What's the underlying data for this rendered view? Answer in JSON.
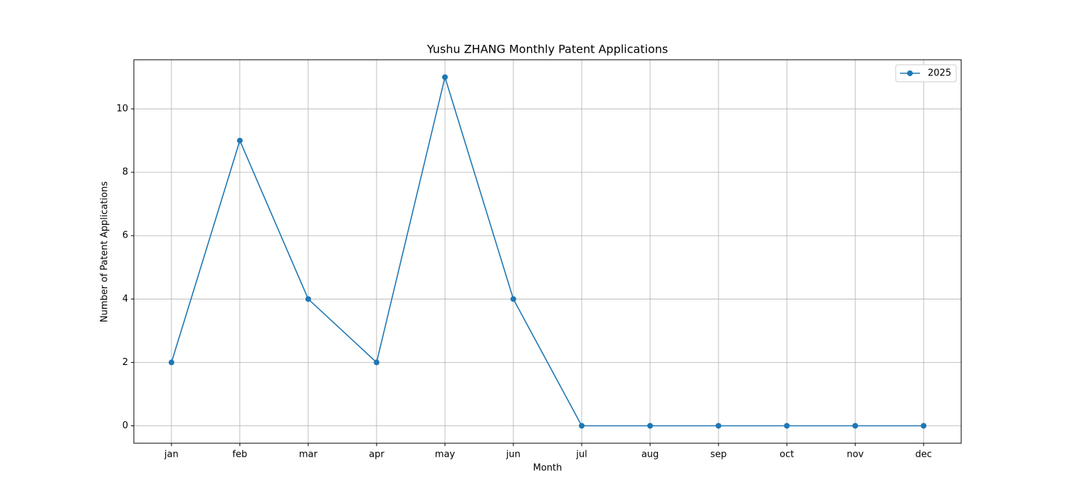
{
  "chart_data": {
    "type": "line",
    "title": "Yushu ZHANG Monthly Patent Applications",
    "x_label": "Month",
    "y_label": "Number of Patent Applications",
    "categories": [
      "jan",
      "feb",
      "mar",
      "apr",
      "may",
      "jun",
      "jul",
      "aug",
      "sep",
      "oct",
      "nov",
      "dec"
    ],
    "series": [
      {
        "name": "2025",
        "color": "#1f77b4",
        "values": [
          2,
          9,
          4,
          2,
          11,
          4,
          0,
          0,
          0,
          0,
          0,
          0
        ]
      }
    ],
    "ylim": [
      -0.55,
      11.55
    ],
    "yticks": [
      0,
      2,
      4,
      6,
      8,
      10
    ],
    "grid": true,
    "legend": "upper right"
  }
}
